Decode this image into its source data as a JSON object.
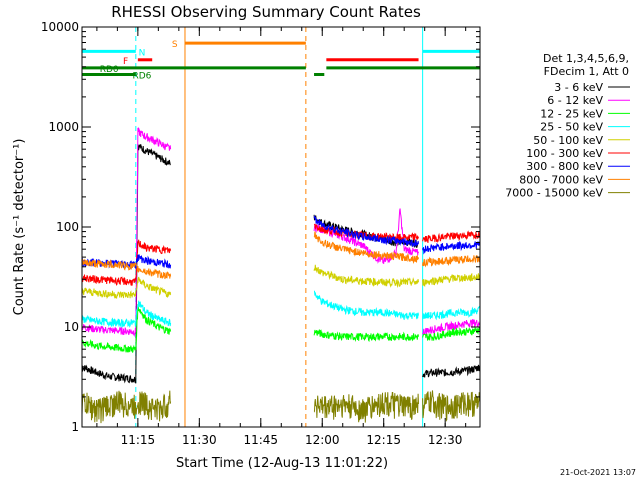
{
  "chart_data": {
    "type": "line",
    "title": "RHESSI Observing Summary Count Rates",
    "xlabel": "Start Time (12-Aug-13 11:01:22)",
    "ylabel": "Count Rate (s⁻¹ detector⁻¹)",
    "x_range": [
      "11:01:22",
      "12:38:30"
    ],
    "y_scale": "log",
    "ylim": [
      1,
      10000
    ],
    "x_ticks": [
      "11:15",
      "11:30",
      "11:45",
      "12:00",
      "12:15",
      "12:30"
    ],
    "y_ticks": [
      "1",
      "10",
      "100",
      "1000",
      "10000"
    ],
    "legend_header": [
      "Det 1,3,4,5,6,9,",
      "FDecim 1, Att 0"
    ],
    "legend_position": "right",
    "footer": "21-Oct-2021 13:07",
    "series": [
      {
        "name": "3 - 6 keV",
        "color": "#000000",
        "segments": [
          {
            "x": [
              "11:01:22",
              "11:05",
              "11:08",
              "11:12",
              "11:14:30",
              "11:15",
              "11:17",
              "11:20",
              "11:23"
            ],
            "y": [
              4,
              3.5,
              3.2,
              3.1,
              3,
              650,
              580,
              500,
              430
            ]
          },
          {
            "x": [
              "11:58",
              "12:00",
              "12:05",
              "12:10",
              "12:15",
              "12:18",
              "12:20",
              "12:22",
              "12:23:30"
            ],
            "y": [
              125,
              110,
              95,
              85,
              75,
              70,
              72,
              70,
              68
            ]
          },
          {
            "x": [
              "12:24:30",
              "12:27",
              "12:30",
              "12:33",
              "12:36",
              "12:38:30"
            ],
            "y": [
              3.4,
              3.5,
              3.5,
              3.6,
              3.7,
              4.0
            ]
          }
        ]
      },
      {
        "name": "6 - 12 keV",
        "color": "#ff00ff",
        "segments": [
          {
            "x": [
              "11:01:22",
              "11:05",
              "11:10",
              "11:14:30",
              "11:15",
              "11:17",
              "11:20",
              "11:23"
            ],
            "y": [
              10,
              9.5,
              9.2,
              9,
              900,
              800,
              700,
              600
            ]
          },
          {
            "x": [
              "11:58",
              "12:00",
              "12:05",
              "12:10",
              "12:13",
              "12:15",
              "12:16",
              "12:18",
              "12:19",
              "12:20",
              "12:23:30"
            ],
            "y": [
              100,
              95,
              80,
              65,
              50,
              45,
              48,
              55,
              150,
              60,
              55
            ]
          },
          {
            "x": [
              "12:24:30",
              "12:27",
              "12:30",
              "12:33",
              "12:36",
              "12:38:30"
            ],
            "y": [
              9,
              9.5,
              10,
              10.5,
              11,
              11
            ]
          }
        ]
      },
      {
        "name": "12 - 25 keV",
        "color": "#00ff00",
        "segments": [
          {
            "x": [
              "11:01:22",
              "11:05",
              "11:10",
              "11:14:30",
              "11:15",
              "11:17",
              "11:20",
              "11:23"
            ],
            "y": [
              7,
              6.5,
              6.2,
              6,
              16,
              12,
              10,
              9
            ]
          },
          {
            "x": [
              "11:58",
              "12:00",
              "12:05",
              "12:10",
              "12:15",
              "12:20",
              "12:23:30"
            ],
            "y": [
              9,
              8.5,
              8,
              8,
              8,
              8,
              8
            ]
          },
          {
            "x": [
              "12:24:30",
              "12:27",
              "12:30",
              "12:33",
              "12:36",
              "12:38:30"
            ],
            "y": [
              8,
              8,
              8.5,
              9,
              9,
              9.5
            ]
          }
        ]
      },
      {
        "name": "25 - 50 keV",
        "color": "#00ffff",
        "segments": [
          {
            "x": [
              "11:01:22",
              "11:05",
              "11:10",
              "11:14:30",
              "11:15",
              "11:17",
              "11:20",
              "11:23"
            ],
            "y": [
              12,
              11.5,
              11,
              11,
              18,
              14,
              12,
              11
            ]
          },
          {
            "x": [
              "11:58",
              "12:00",
              "12:05",
              "12:10",
              "12:15",
              "12:20",
              "12:23:30"
            ],
            "y": [
              22,
              18,
              15,
              14,
              14,
              13,
              13
            ]
          },
          {
            "x": [
              "12:24:30",
              "12:27",
              "12:30",
              "12:33",
              "12:36",
              "12:38:30"
            ],
            "y": [
              13,
              13,
              13.5,
              14,
              14,
              15
            ]
          }
        ]
      },
      {
        "name": "50 - 100 keV",
        "color": "#d0d000",
        "segments": [
          {
            "x": [
              "11:01:22",
              "11:05",
              "11:10",
              "11:14:30",
              "11:15",
              "11:17",
              "11:20",
              "11:23"
            ],
            "y": [
              23,
              22,
              21,
              21,
              30,
              26,
              23,
              21
            ]
          },
          {
            "x": [
              "11:58",
              "12:00",
              "12:05",
              "12:10",
              "12:15",
              "12:20",
              "12:23:30"
            ],
            "y": [
              40,
              35,
              30,
              29,
              28,
              28,
              28
            ]
          },
          {
            "x": [
              "12:24:30",
              "12:27",
              "12:30",
              "12:33",
              "12:36",
              "12:38:30"
            ],
            "y": [
              28,
              29,
              30,
              31,
              31,
              32
            ]
          }
        ]
      },
      {
        "name": "100 - 300 keV",
        "color": "#ff0000",
        "segments": [
          {
            "x": [
              "11:01:22",
              "11:05",
              "11:10",
              "11:14:30",
              "11:15",
              "11:17",
              "11:20",
              "11:23"
            ],
            "y": [
              31,
              30,
              29,
              28,
              70,
              62,
              60,
              58
            ]
          },
          {
            "x": [
              "11:58",
              "12:00",
              "12:05",
              "12:10",
              "12:15",
              "12:20",
              "12:23:30"
            ],
            "y": [
              105,
              95,
              88,
              82,
              80,
              78,
              80
            ]
          },
          {
            "x": [
              "12:24:30",
              "12:27",
              "12:30",
              "12:33",
              "12:36",
              "12:38:30"
            ],
            "y": [
              75,
              77,
              80,
              82,
              83,
              85
            ]
          }
        ]
      },
      {
        "name": "300 - 800 keV",
        "color": "#0000ff",
        "segments": [
          {
            "x": [
              "11:01:22",
              "11:05",
              "11:10",
              "11:14:30",
              "11:15",
              "11:17",
              "11:20",
              "11:23"
            ],
            "y": [
              45,
              44,
              43,
              42,
              50,
              46,
              44,
              42
            ]
          },
          {
            "x": [
              "11:58",
              "12:00",
              "12:05",
              "12:10",
              "12:15",
              "12:20",
              "12:23:30"
            ],
            "y": [
              120,
              105,
              90,
              80,
              75,
              72,
              68
            ]
          },
          {
            "x": [
              "12:24:30",
              "12:27",
              "12:30",
              "12:33",
              "12:36",
              "12:38:30"
            ],
            "y": [
              60,
              62,
              64,
              65,
              66,
              67
            ]
          }
        ]
      },
      {
        "name": "800 - 7000 keV",
        "color": "#ff8000",
        "segments": [
          {
            "x": [
              "11:01:22",
              "11:05",
              "11:10",
              "11:14:30",
              "11:15",
              "11:17",
              "11:20",
              "11:23"
            ],
            "y": [
              44,
              43,
              42,
              40,
              38,
              36,
              34,
              32
            ]
          },
          {
            "x": [
              "11:58",
              "12:00",
              "12:05",
              "12:10",
              "12:15",
              "12:20",
              "12:23:30"
            ],
            "y": [
              85,
              70,
              60,
              55,
              52,
              50,
              48
            ]
          },
          {
            "x": [
              "12:24:30",
              "12:27",
              "12:30",
              "12:33",
              "12:36",
              "12:38:30"
            ],
            "y": [
              44,
              45,
              46,
              47,
              48,
              48
            ]
          }
        ]
      },
      {
        "name": "7000 - 15000 keV",
        "color": "#808000",
        "segments": [
          {
            "x": [
              "11:01:22",
              "11:05",
              "11:10",
              "11:14:30",
              "11:15",
              "11:17",
              "11:20",
              "11:23"
            ],
            "y": [
              1.8,
              1.5,
              1.8,
              1.6,
              1.9,
              1.7,
              1.5,
              1.8
            ]
          },
          {
            "x": [
              "11:58",
              "12:00",
              "12:05",
              "12:10",
              "12:15",
              "12:20",
              "12:23:30"
            ],
            "y": [
              1.8,
              1.6,
              1.7,
              1.5,
              1.8,
              1.6,
              1.7
            ]
          },
          {
            "x": [
              "12:24:30",
              "12:27",
              "12:30",
              "12:33",
              "12:36",
              "12:38:30"
            ],
            "y": [
              1.7,
              1.8,
              1.6,
              1.7,
              1.8,
              1.7
            ]
          }
        ]
      }
    ],
    "annotations": {
      "night_lines": {
        "label": "N",
        "color": "#00ffff",
        "times": [
          "11:01:22",
          "11:14:30",
          "12:24:30",
          "12:38:30"
        ]
      },
      "saa_lines": {
        "label": "S",
        "color": "#ff8000",
        "times": [
          "11:26:30",
          "11:56:00"
        ]
      },
      "bars": [
        {
          "label": "N",
          "color": "#00ffff",
          "y": 5700,
          "from": "11:01:22",
          "to": "11:14:30",
          "label_at": "11:16"
        },
        {
          "label": "",
          "color": "#00ffff",
          "y": 5700,
          "from": "12:24:30",
          "to": "12:38:30"
        },
        {
          "label": "S",
          "color": "#ff8000",
          "y": 6900,
          "from": "11:26:30",
          "to": "11:56:00",
          "label_at": "11:24"
        },
        {
          "label": "F",
          "color": "#ff0000",
          "y": 4700,
          "from": "11:15",
          "to": "11:18:30",
          "label_at": "11:12"
        },
        {
          "label": "",
          "color": "#ff0000",
          "y": 4700,
          "from": "12:01",
          "to": "12:23:30"
        },
        {
          "label": "RD0",
          "color": "#008000",
          "y": 3900,
          "from": "11:01:22",
          "to": "11:56:00",
          "label_at": "11:08"
        },
        {
          "label": "",
          "color": "#008000",
          "y": 3900,
          "from": "12:01",
          "to": "12:38:30"
        },
        {
          "label": "",
          "color": "#008000",
          "y": 3350,
          "from": "11:58",
          "to": "12:00:30"
        },
        {
          "label": "RD6",
          "color": "#008000",
          "y": 3350,
          "from": "11:01:22",
          "to": "11:14:30",
          "label_at": "11:16"
        }
      ]
    }
  }
}
